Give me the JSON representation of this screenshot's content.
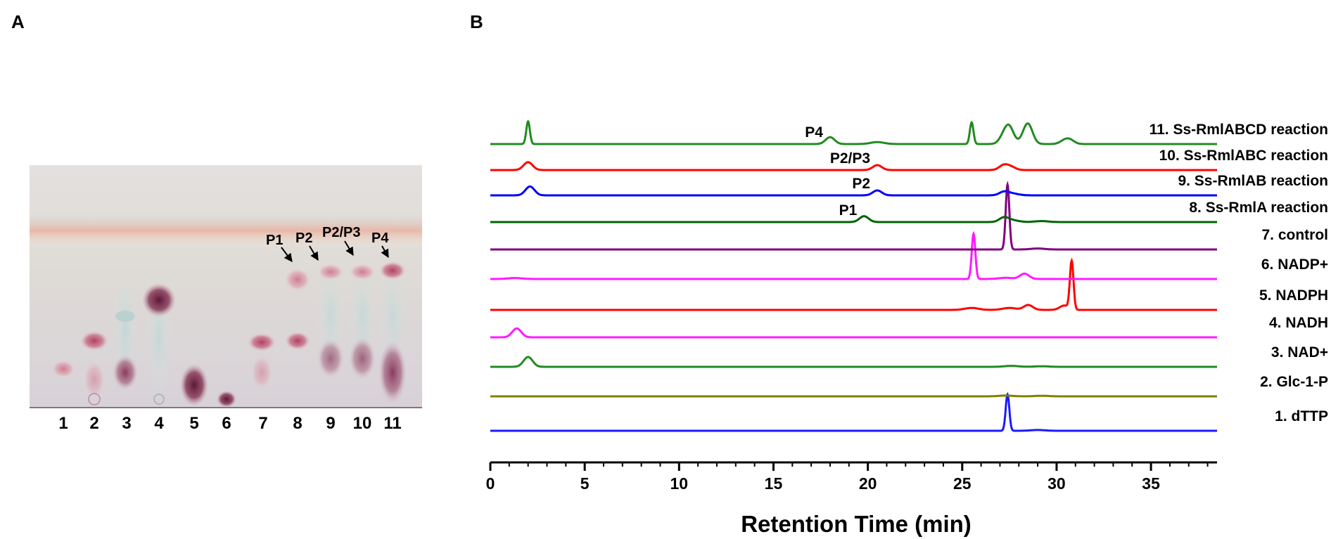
{
  "panels": {
    "a": {
      "label": "A",
      "lane_labels": [
        "1",
        "2",
        "3",
        "4",
        "5",
        "6",
        "7",
        "8",
        "9",
        "10",
        "11"
      ],
      "spot_labels": [
        {
          "text": "P1",
          "lane": "8"
        },
        {
          "text": "P2",
          "lane": "9"
        },
        {
          "text": "P2/P3",
          "lane": "10"
        },
        {
          "text": "P4",
          "lane": "11"
        }
      ]
    },
    "b": {
      "label": "B"
    }
  },
  "chart_data": {
    "type": "line",
    "title": "",
    "xlabel": "Retention Time (min)",
    "ylabel": "",
    "xlim": [
      0,
      38.5
    ],
    "xticks": [
      0,
      5,
      10,
      15,
      20,
      25,
      30,
      35
    ],
    "xtick_labels": [
      "0",
      "5",
      "10",
      "15",
      "20",
      "25",
      "30",
      "35"
    ],
    "series": [
      {
        "name": "1. dTTP",
        "color": "#1a1aff",
        "peaks": [
          {
            "x": 27.4,
            "height": 1.85
          },
          {
            "x": 29.0,
            "height": 0.04
          }
        ]
      },
      {
        "name": "2. Glc-1-P",
        "color": "#808000",
        "peaks": [
          {
            "x": 27.3,
            "height": 0.04
          },
          {
            "x": 29.2,
            "height": 0.03
          }
        ]
      },
      {
        "name": "3. NAD+",
        "color": "#228b22",
        "peaks": [
          {
            "x": 2.0,
            "height": 0.5
          },
          {
            "x": 27.6,
            "height": 0.05
          },
          {
            "x": 29.2,
            "height": 0.03
          }
        ]
      },
      {
        "name": "4. NADH",
        "color": "#ff1aff",
        "peaks": [
          {
            "x": 1.4,
            "height": 0.45
          }
        ]
      },
      {
        "name": "5. NADPH",
        "color": "#ff0000",
        "peaks": [
          {
            "x": 25.5,
            "height": 0.1
          },
          {
            "x": 27.5,
            "height": 0.1
          },
          {
            "x": 28.5,
            "height": 0.25
          },
          {
            "x": 30.4,
            "height": 0.22
          },
          {
            "x": 30.8,
            "height": 2.45
          }
        ]
      },
      {
        "name": "6. NADP+",
        "color": "#ff1aff",
        "peaks": [
          {
            "x": 1.3,
            "height": 0.05
          },
          {
            "x": 25.6,
            "height": 2.3
          },
          {
            "x": 27.3,
            "height": 0.06
          },
          {
            "x": 28.3,
            "height": 0.27
          }
        ]
      },
      {
        "name": "7. control",
        "color": "#800080",
        "peaks": [
          {
            "x": 27.4,
            "height": 3.3
          },
          {
            "x": 29.0,
            "height": 0.05
          }
        ]
      },
      {
        "name": "8. Ss-RmlA reaction",
        "color": "#006400",
        "peaks": [
          {
            "x": 19.8,
            "height": 0.3
          },
          {
            "x": 27.2,
            "height": 0.2
          },
          {
            "x": 27.6,
            "height": 0.1
          },
          {
            "x": 29.2,
            "height": 0.05
          }
        ]
      },
      {
        "name": "9. Ss-RmlAB reaction",
        "color": "#0000ff",
        "peaks": [
          {
            "x": 2.1,
            "height": 0.45
          },
          {
            "x": 20.5,
            "height": 0.25
          },
          {
            "x": 27.2,
            "height": 0.15
          },
          {
            "x": 27.6,
            "height": 0.1
          }
        ]
      },
      {
        "name": "10. Ss-RmlABC reaction",
        "color": "#ff0000",
        "peaks": [
          {
            "x": 2.0,
            "height": 0.4
          },
          {
            "x": 20.5,
            "height": 0.25
          },
          {
            "x": 27.2,
            "height": 0.25
          },
          {
            "x": 27.6,
            "height": 0.15
          }
        ]
      },
      {
        "name": "11. Ss-RmlABCD reaction",
        "color": "#228b22",
        "peaks": [
          {
            "x": 2.0,
            "height": 1.15
          },
          {
            "x": 18.0,
            "height": 0.35
          },
          {
            "x": 20.5,
            "height": 0.1
          },
          {
            "x": 25.5,
            "height": 1.1
          },
          {
            "x": 27.2,
            "height": 0.35
          },
          {
            "x": 27.5,
            "height": 0.8
          },
          {
            "x": 28.3,
            "height": 0.2
          },
          {
            "x": 28.5,
            "height": 0.9
          },
          {
            "x": 30.4,
            "height": 0.15
          },
          {
            "x": 30.7,
            "height": 0.2
          }
        ]
      }
    ],
    "annotations": [
      {
        "text": "P1",
        "series": "8. Ss-RmlA reaction",
        "x": 19.8
      },
      {
        "text": "P2",
        "series": "9. Ss-RmlAB reaction",
        "x": 20.5
      },
      {
        "text": "P2/P3",
        "series": "10. Ss-RmlABC reaction",
        "x": 20.5
      },
      {
        "text": "P4",
        "series": "11. Ss-RmlABCD reaction",
        "x": 18.0
      }
    ]
  }
}
